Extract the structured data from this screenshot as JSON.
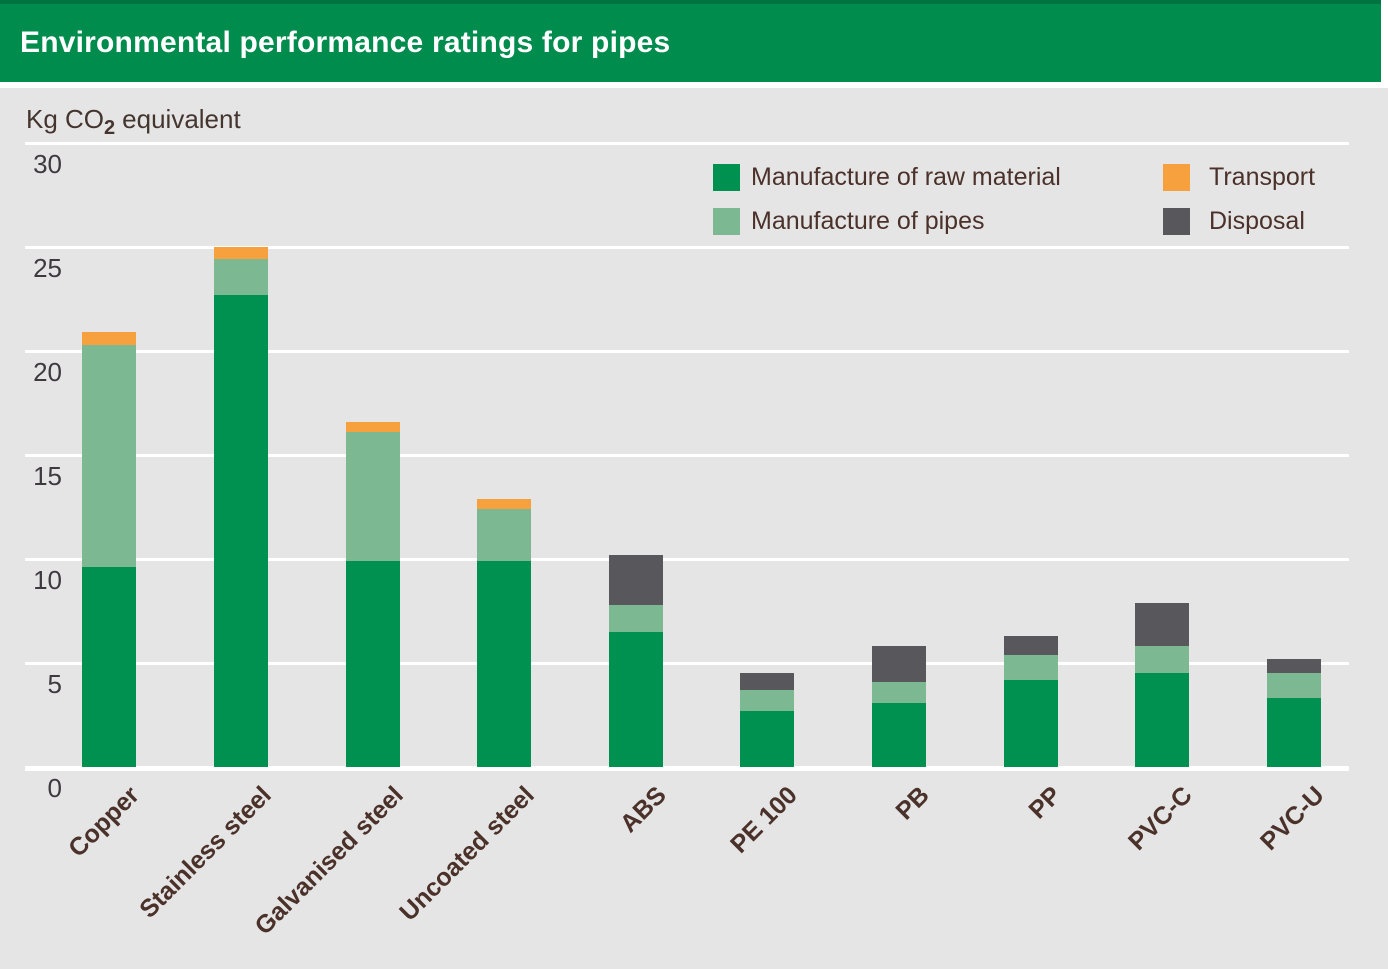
{
  "header": {
    "title": "Environmental performance ratings for pipes"
  },
  "axis_title": {
    "prefix": "Kg CO",
    "subscript": "2",
    "suffix": "equivalent"
  },
  "legend": {
    "items": [
      {
        "key": "raw",
        "label": "Manufacture of raw material"
      },
      {
        "key": "pipes",
        "label": "Manufacture of pipes"
      },
      {
        "key": "transport",
        "label": "Transport"
      },
      {
        "key": "disposal",
        "label": "Disposal"
      }
    ]
  },
  "colors": {
    "header_green": "#008c4d",
    "raw_green": "#009150",
    "pipes_green": "#7cb993",
    "transport_orange": "#f6a13d",
    "disposal_grey": "#58585c",
    "background_grey": "#e6e5e6",
    "gridline_white": "#ffffff",
    "tick_text": "#3e3a40",
    "label_text": "#4a3129",
    "title_text": "#ffffff"
  },
  "chart_data": {
    "type": "bar",
    "stacked": true,
    "title": "Environmental performance ratings for pipes",
    "ylabel": "Kg CO2 equivalent",
    "xlabel": "",
    "ylim": [
      0,
      30
    ],
    "yticks": [
      0,
      5,
      10,
      15,
      20,
      25,
      30
    ],
    "grid": true,
    "legend_position": "top-right",
    "categories": [
      "Copper",
      "Stainless steel",
      "Galvanised steel",
      "Uncoated steel",
      "ABS",
      "PE 100",
      "PB",
      "PP",
      "PVC-C",
      "PVC-U"
    ],
    "series": [
      {
        "key": "raw",
        "name": "Manufacture of raw material",
        "color": "#009150",
        "values": [
          9.6,
          22.7,
          9.9,
          9.9,
          6.5,
          2.7,
          3.1,
          4.2,
          4.5,
          3.3
        ]
      },
      {
        "key": "pipes",
        "name": "Manufacture of pipes",
        "color": "#7cb993",
        "values": [
          10.7,
          1.7,
          6.2,
          2.5,
          1.3,
          1.0,
          1.0,
          1.2,
          1.3,
          1.2
        ]
      },
      {
        "key": "transport",
        "name": "Transport",
        "color": "#f6a13d",
        "values": [
          0.6,
          0.6,
          0.5,
          0.5,
          0,
          0,
          0,
          0,
          0,
          0
        ]
      },
      {
        "key": "disposal",
        "name": "Disposal",
        "color": "#58585c",
        "values": [
          0,
          0,
          0,
          0,
          2.4,
          0.8,
          1.7,
          0.9,
          2.1,
          0.7
        ]
      }
    ],
    "totals": [
      20.9,
      25.0,
      16.6,
      12.9,
      10.2,
      4.5,
      5.8,
      6.3,
      7.9,
      5.2
    ]
  }
}
